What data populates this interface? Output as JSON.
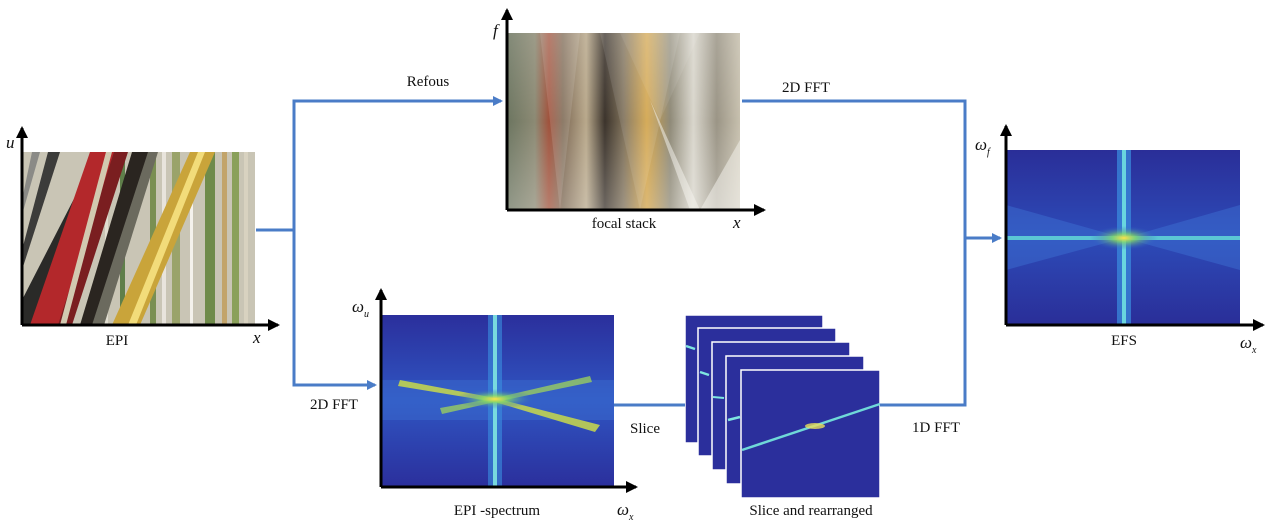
{
  "panels": {
    "epi": {
      "caption": "EPI",
      "x_axis": "x",
      "y_axis": "u"
    },
    "focal_stack": {
      "caption": "focal stack",
      "x_axis": "x",
      "y_axis": "f"
    },
    "efs": {
      "caption": "EFS",
      "x_axis_symbol": "ω",
      "x_axis_sub": "x",
      "y_axis_symbol": "ω",
      "y_axis_sub": "f"
    },
    "epi_spectrum": {
      "caption": "EPI -spectrum",
      "x_axis_symbol": "ω",
      "x_axis_sub": "x",
      "y_axis_symbol": "ω",
      "y_axis_sub": "u"
    },
    "slices": {
      "caption": "Slice and rearranged"
    }
  },
  "edges": {
    "refocus": "Refous",
    "fft2d_top": "2D FFT",
    "fft2d_bottom": "2D FFT",
    "slice": "Slice",
    "fft1d": "1D FFT"
  },
  "colors": {
    "arrow": "#4a7cc7",
    "spectrum_bg": "#2a2f9a"
  }
}
